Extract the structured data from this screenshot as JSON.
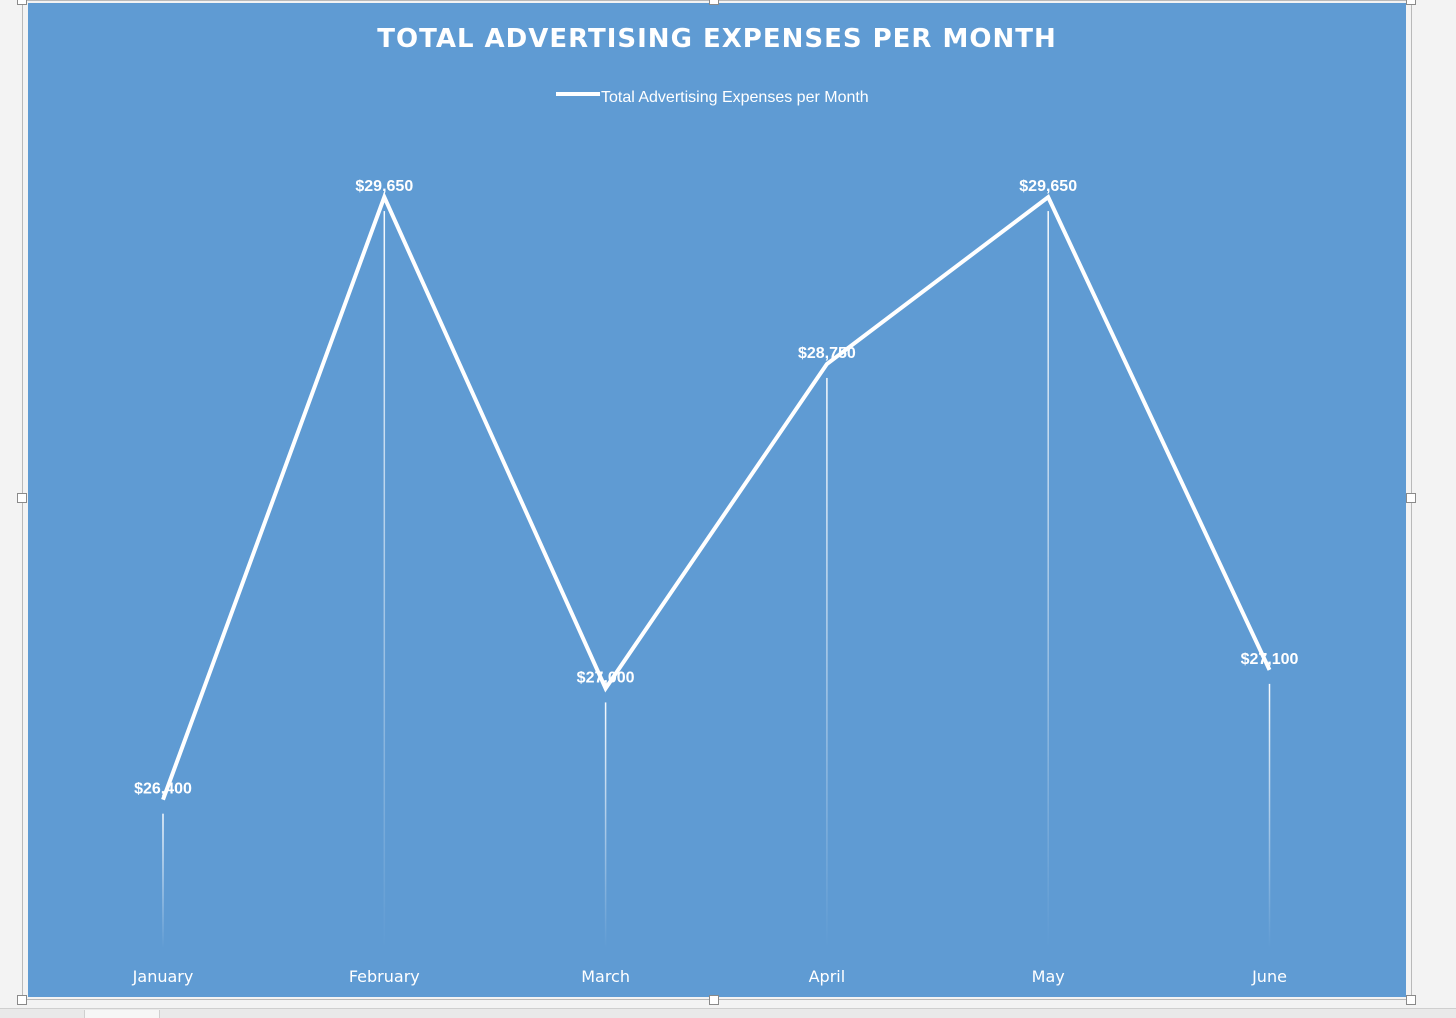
{
  "chart_data": {
    "type": "line",
    "title": "TOTAL ADVERTISING EXPENSES PER MONTH",
    "xlabel": "",
    "ylabel": "",
    "categories": [
      "January",
      "February",
      "March",
      "April",
      "May",
      "June"
    ],
    "series": [
      {
        "name": "Total Advertising Expenses per Month",
        "values": [
          26400,
          29650,
          27000,
          28750,
          29650,
          27100
        ],
        "data_labels": [
          "$26,400",
          "$29,650",
          "$27,000",
          "$28,750",
          "$29,650",
          "$27,100"
        ]
      }
    ],
    "ylim": [
      25600,
      30330
    ],
    "grid": false,
    "legend_position": "top",
    "drop_lines": true,
    "colors": {
      "background": "#5f9bd3",
      "line": "#ffffff",
      "text": "#ffffff"
    }
  }
}
